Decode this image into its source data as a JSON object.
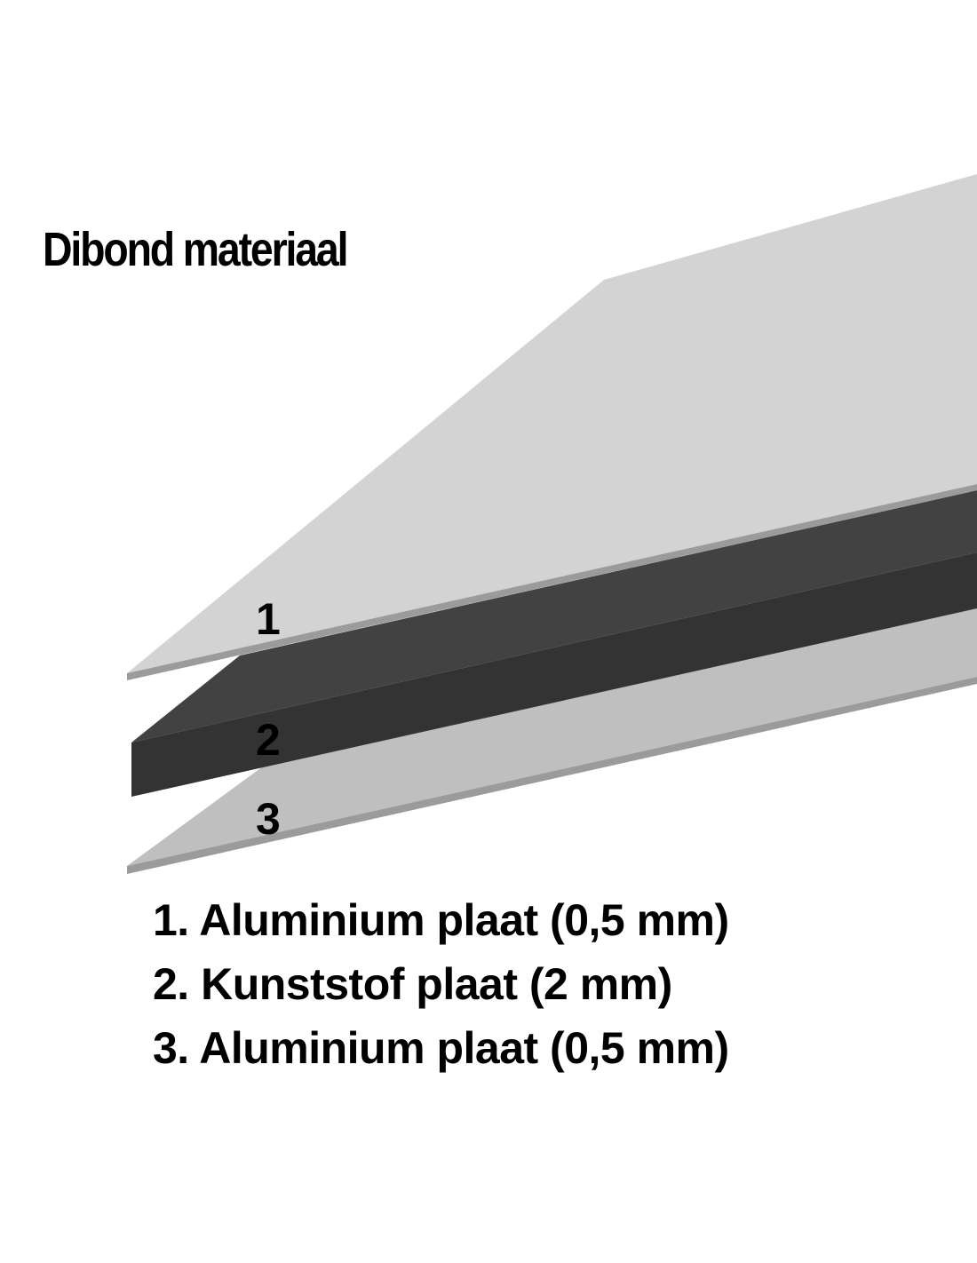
{
  "title": "Dibond materiaal",
  "layers": [
    {
      "number": "1",
      "label": "1. Aluminium plaat (0,5 mm)",
      "color": "#d3d3d3"
    },
    {
      "number": "2",
      "label": "2. Kunststof plaat (2 mm)",
      "color": "#424242"
    },
    {
      "number": "3",
      "label": "3. Aluminium plaat (0,5 mm)",
      "color": "#bfbfbf"
    }
  ],
  "colors": {
    "edge": "#9b9b9b",
    "core_front": "#333333"
  }
}
